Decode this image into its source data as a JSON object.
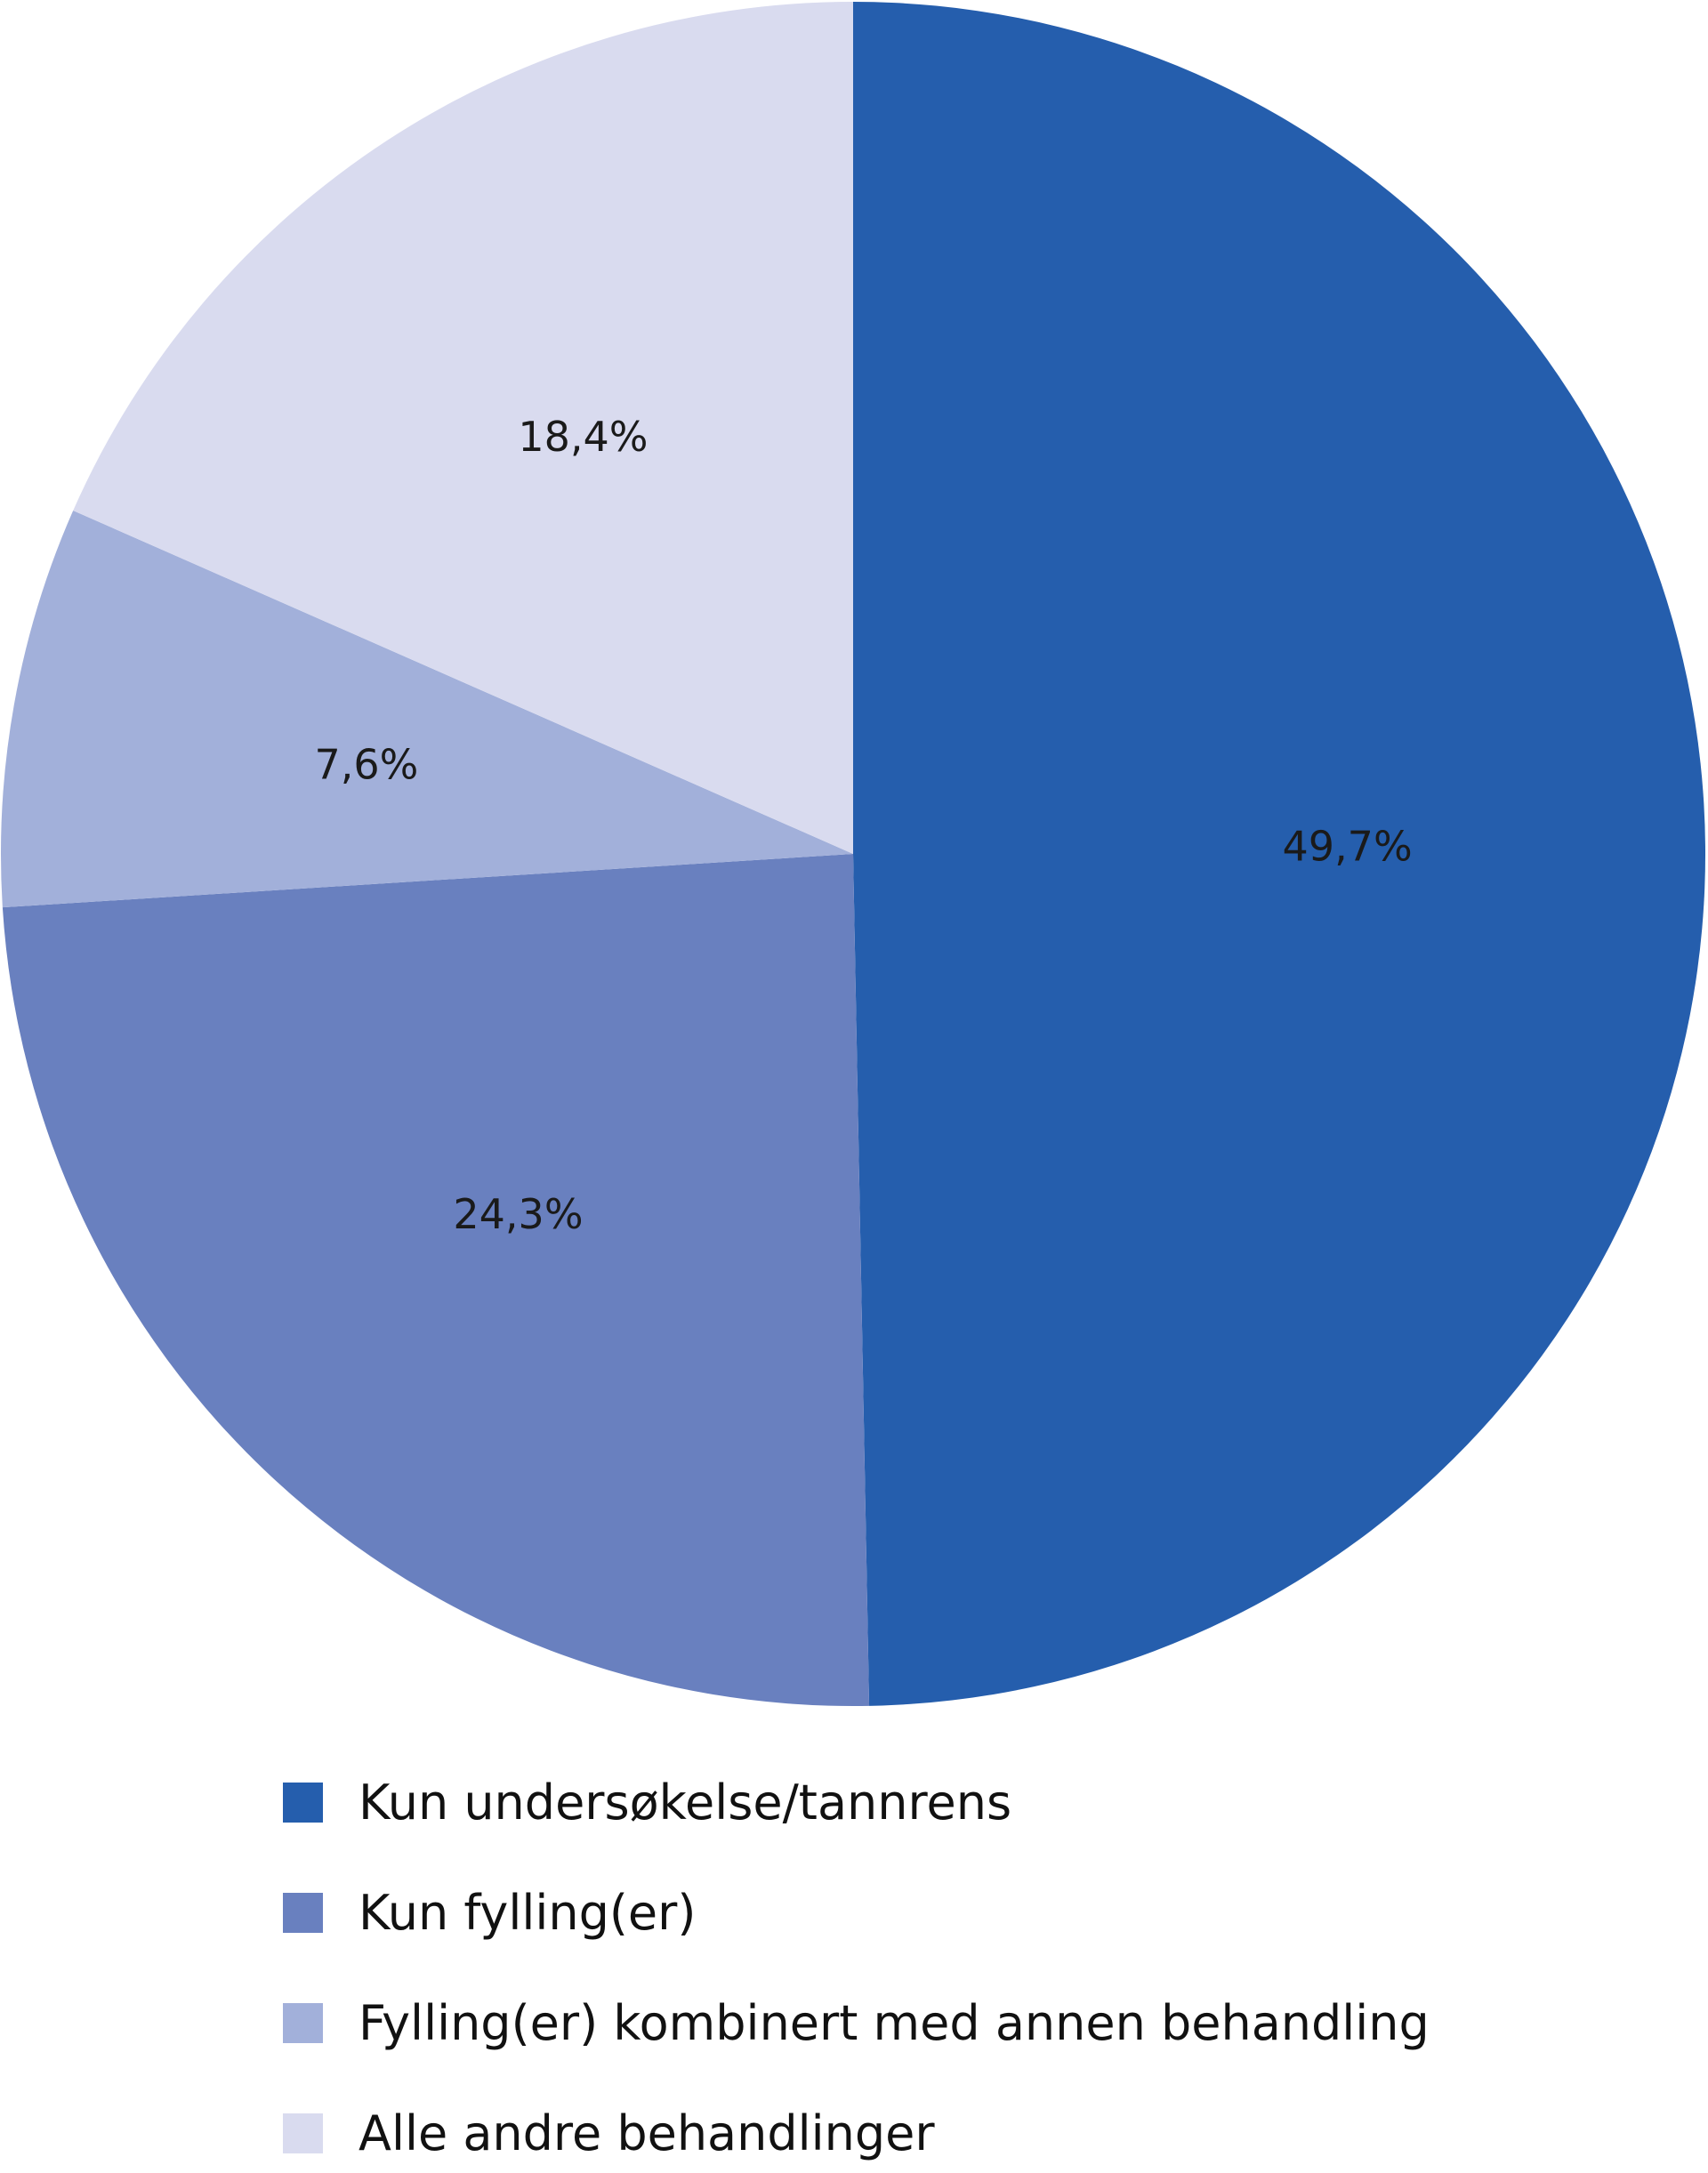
{
  "chart_data": {
    "type": "pie",
    "start_angle_deg": 0,
    "direction": "clockwise",
    "slices": [
      {
        "label": "Kun undersøkelse/tannrens",
        "value": 49.7,
        "display": "49,7%",
        "color": "#255EAD"
      },
      {
        "label": "Kun fylling(er)",
        "value": 24.3,
        "display": "24,3%",
        "color": "#6980BF"
      },
      {
        "label": "Fylling(er) kombinert med annen behandling",
        "value": 7.6,
        "display": "7,6%",
        "color": "#A2B0DA"
      },
      {
        "label": "Alle andre behandlinger",
        "value": 18.4,
        "display": "18,4%",
        "color": "#D9DBEF"
      }
    ],
    "legend_position": "bottom"
  }
}
